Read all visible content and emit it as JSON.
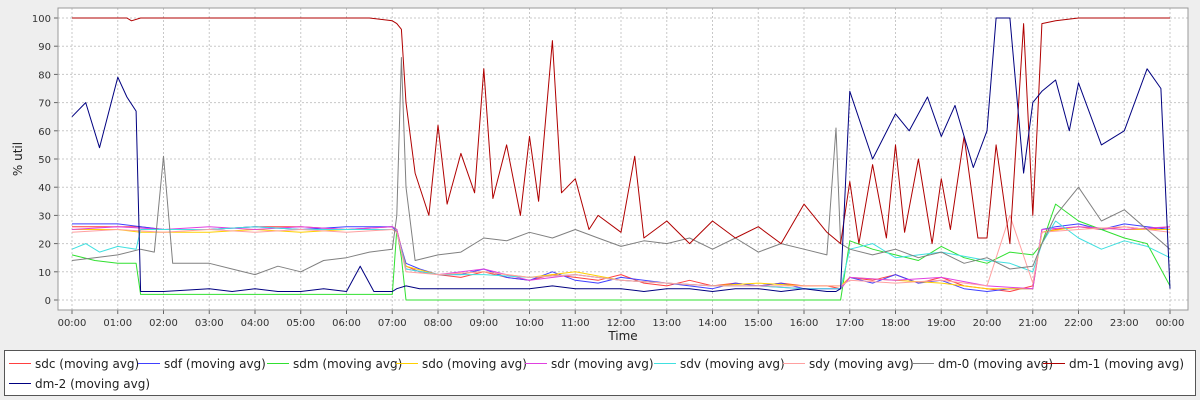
{
  "chart_data": {
    "type": "line",
    "title": "",
    "xlabel": "Time",
    "ylabel": "% util",
    "ylim": [
      0,
      100
    ],
    "y_ticks": [
      0,
      10,
      20,
      30,
      40,
      50,
      60,
      70,
      80,
      90,
      100
    ],
    "xlim": [
      0,
      24
    ],
    "x_unit": "hours since 00:00",
    "x_tick_labels": [
      "00:00",
      "01:00",
      "02:00",
      "03:00",
      "04:00",
      "05:00",
      "06:00",
      "07:00",
      "08:00",
      "09:00",
      "10:00",
      "11:00",
      "12:00",
      "13:00",
      "14:00",
      "15:00",
      "16:00",
      "17:00",
      "18:00",
      "19:00",
      "20:00",
      "21:00",
      "22:00",
      "23:00",
      "00:00"
    ],
    "grid": true,
    "legend_position": "bottom",
    "series": [
      {
        "name": "sdc (moving avg)",
        "color": "#ff4040",
        "x": [
          0,
          1,
          1.4,
          1.5,
          2,
          3,
          4,
          5,
          6,
          7,
          7.1,
          7.3,
          7.6,
          8,
          8.5,
          9,
          9.5,
          10,
          10.5,
          11,
          11.5,
          12,
          12.5,
          13,
          13.5,
          14,
          14.5,
          15,
          15.5,
          16,
          16.5,
          16.8,
          17,
          17.5,
          18,
          18.5,
          19,
          19.5,
          20,
          20.5,
          21,
          21.2,
          21.5,
          22,
          22.5,
          23,
          23.5,
          24
        ],
        "y": [
          26,
          26,
          26,
          26,
          25,
          25,
          26,
          26,
          25,
          26,
          25,
          12,
          10,
          9,
          8,
          10,
          8,
          7,
          9,
          8,
          7,
          9,
          6,
          5,
          7,
          5,
          6,
          5,
          6,
          5,
          5,
          4,
          8,
          7,
          9,
          6,
          8,
          5,
          4,
          3,
          5,
          24,
          25,
          26,
          25,
          26,
          25,
          26
        ]
      },
      {
        "name": "sdf (moving avg)",
        "color": "#4040ff",
        "x": [
          0,
          1,
          1.5,
          2,
          3,
          4,
          5,
          6,
          7,
          7.1,
          7.3,
          7.6,
          8,
          8.5,
          9,
          9.5,
          10,
          10.5,
          11,
          11.5,
          12,
          12.5,
          13,
          13.5,
          14,
          14.5,
          15,
          15.5,
          16,
          16.5,
          16.8,
          17,
          17.5,
          18,
          18.5,
          19,
          19.5,
          20,
          20.5,
          21,
          21.2,
          21.5,
          22,
          22.5,
          23,
          23.5,
          24
        ],
        "y": [
          27,
          27,
          26,
          25,
          25,
          26,
          25,
          26,
          26,
          24,
          13,
          11,
          9,
          9,
          11,
          8,
          7,
          10,
          7,
          6,
          8,
          7,
          6,
          5,
          4,
          6,
          5,
          6,
          4,
          4,
          4,
          8,
          6,
          9,
          6,
          7,
          4,
          3,
          4,
          4,
          25,
          26,
          27,
          25,
          27,
          26,
          25
        ]
      },
      {
        "name": "sdm (moving avg)",
        "color": "#30e030",
        "x": [
          0,
          0.5,
          1,
          1.4,
          1.5,
          2,
          3,
          4,
          5,
          6,
          6.5,
          7,
          7.1,
          7.2,
          7.3,
          8,
          9,
          10,
          11,
          12,
          13,
          14,
          15,
          16,
          16.5,
          16.8,
          17,
          17.5,
          18,
          18.5,
          19,
          19.5,
          20,
          20.5,
          21,
          21.2,
          21.5,
          22,
          22.5,
          23,
          23.5,
          24
        ],
        "y": [
          16,
          14,
          13,
          13,
          2,
          2,
          2,
          2,
          2,
          2,
          2,
          2,
          25,
          15,
          0,
          0,
          0,
          0,
          0,
          0,
          0,
          0,
          0,
          0,
          0,
          0,
          21,
          18,
          16,
          14,
          19,
          15,
          13,
          17,
          16,
          20,
          34,
          28,
          25,
          22,
          20,
          5
        ]
      },
      {
        "name": "sdo (moving avg)",
        "color": "#ffd000",
        "x": [
          0,
          1,
          1.5,
          2,
          3,
          4,
          5,
          6,
          7,
          7.1,
          7.3,
          8,
          9,
          10,
          11,
          12,
          13,
          14,
          15,
          16,
          16.8,
          17,
          18,
          19,
          20,
          21,
          21.2,
          22,
          23,
          24
        ],
        "y": [
          25,
          25,
          24,
          24,
          24,
          25,
          24,
          25,
          25,
          24,
          12,
          9,
          10,
          8,
          10,
          7,
          6,
          5,
          6,
          5,
          5,
          8,
          7,
          6,
          4,
          4,
          24,
          26,
          25,
          25
        ]
      },
      {
        "name": "sdr (moving avg)",
        "color": "#e040e0",
        "x": [
          0,
          1,
          2,
          3,
          4,
          5,
          6,
          7,
          7.1,
          7.3,
          8,
          9,
          10,
          11,
          12,
          13,
          14,
          15,
          16,
          16.8,
          17,
          18,
          19,
          20,
          21,
          21.2,
          22,
          23,
          24
        ],
        "y": [
          25,
          26,
          25,
          26,
          25,
          26,
          25,
          26,
          25,
          11,
          9,
          11,
          7,
          9,
          7,
          6,
          5,
          5,
          4,
          4,
          8,
          7,
          8,
          5,
          4,
          25,
          26,
          25,
          26
        ]
      },
      {
        "name": "sdv (moving avg)",
        "color": "#40e0e0",
        "x": [
          0,
          0.3,
          0.6,
          1,
          1.4,
          1.5,
          2,
          3,
          4,
          5,
          6,
          7,
          7.1,
          7.3,
          8,
          9,
          10,
          11,
          12,
          13,
          14,
          15,
          16,
          16.8,
          17,
          17.5,
          18,
          19,
          20,
          20.5,
          21,
          21.2,
          21.5,
          22,
          22.5,
          23,
          23.5,
          24
        ],
        "y": [
          18,
          20,
          17,
          19,
          18,
          25,
          25,
          25,
          26,
          25,
          25,
          25,
          24,
          11,
          9,
          9,
          8,
          9,
          7,
          6,
          5,
          5,
          4,
          4,
          18,
          20,
          15,
          17,
          14,
          13,
          10,
          20,
          28,
          22,
          18,
          21,
          19,
          15
        ]
      },
      {
        "name": "sdy (moving avg)",
        "color": "#ffa0a0",
        "x": [
          0,
          1,
          2,
          3,
          4,
          5,
          6,
          7,
          7.1,
          7.3,
          8,
          9,
          10,
          11,
          12,
          13,
          14,
          15,
          16,
          16.8,
          17,
          18,
          19,
          20,
          20.5,
          21,
          21.2,
          22,
          23,
          24
        ],
        "y": [
          24,
          25,
          24,
          25,
          24,
          25,
          24,
          25,
          24,
          10,
          9,
          10,
          8,
          9,
          7,
          6,
          5,
          5,
          5,
          5,
          7,
          6,
          7,
          5,
          30,
          6,
          24,
          25,
          26,
          24
        ]
      },
      {
        "name": "dm-0 (moving avg)",
        "color": "#808080",
        "x": [
          0,
          0.5,
          1,
          1.5,
          1.8,
          2,
          2.2,
          3,
          3.5,
          4,
          4.5,
          5,
          5.5,
          6,
          6.5,
          7,
          7.1,
          7.2,
          7.3,
          7.5,
          8,
          8.5,
          9,
          9.5,
          10,
          10.5,
          11,
          11.5,
          12,
          12.5,
          13,
          13.5,
          14,
          14.5,
          15,
          15.5,
          16,
          16.5,
          16.7,
          16.8,
          17,
          17.5,
          18,
          18.5,
          19,
          19.5,
          20,
          20.5,
          21,
          21.2,
          21.5,
          22,
          22.5,
          23,
          23.5,
          24
        ],
        "y": [
          14,
          15,
          16,
          18,
          17,
          51,
          13,
          13,
          11,
          9,
          12,
          10,
          14,
          15,
          17,
          18,
          30,
          86,
          40,
          14,
          16,
          17,
          22,
          21,
          24,
          22,
          25,
          22,
          19,
          21,
          20,
          22,
          18,
          22,
          17,
          20,
          18,
          16,
          61,
          20,
          18,
          16,
          18,
          15,
          17,
          13,
          15,
          11,
          12,
          20,
          30,
          40,
          28,
          32,
          25,
          18
        ]
      },
      {
        "name": "dm-1 (moving avg)",
        "color": "#b00000",
        "x": [
          0,
          0.5,
          1,
          1.2,
          1.3,
          1.5,
          2,
          3,
          4,
          5,
          6,
          6.5,
          7,
          7.1,
          7.2,
          7.3,
          7.5,
          7.8,
          8,
          8.2,
          8.5,
          8.8,
          9,
          9.2,
          9.5,
          9.8,
          10,
          10.2,
          10.5,
          10.7,
          11,
          11.3,
          11.5,
          12,
          12.3,
          12.5,
          13,
          13.5,
          14,
          14.5,
          15,
          15.5,
          16,
          16.5,
          16.8,
          17,
          17.2,
          17.5,
          17.8,
          18,
          18.2,
          18.5,
          18.8,
          19,
          19.2,
          19.5,
          19.8,
          20,
          20.2,
          20.5,
          20.8,
          21,
          21.1,
          21.2,
          21.5,
          22,
          22.5,
          23,
          23.5,
          24
        ],
        "y": [
          100,
          100,
          100,
          100,
          99,
          100,
          100,
          100,
          100,
          100,
          100,
          100,
          99,
          98,
          96,
          70,
          45,
          30,
          62,
          34,
          52,
          38,
          82,
          36,
          55,
          30,
          58,
          35,
          92,
          38,
          43,
          25,
          30,
          24,
          51,
          22,
          28,
          20,
          28,
          22,
          26,
          20,
          34,
          24,
          20,
          42,
          20,
          48,
          22,
          55,
          24,
          50,
          20,
          43,
          25,
          58,
          22,
          22,
          55,
          20,
          98,
          30,
          62,
          98,
          99,
          100,
          100,
          100,
          100,
          100
        ]
      },
      {
        "name": "dm-2 (moving avg)",
        "color": "#000080",
        "x": [
          0,
          0.3,
          0.6,
          1,
          1.2,
          1.4,
          1.5,
          2,
          3,
          3.5,
          4,
          4.5,
          5,
          5.5,
          6,
          6.3,
          6.6,
          7,
          7.1,
          7.3,
          7.6,
          8,
          8.5,
          9,
          9.5,
          10,
          10.5,
          11,
          11.5,
          12,
          12.5,
          13,
          13.5,
          14,
          14.5,
          15,
          15.5,
          16,
          16.5,
          16.7,
          16.8,
          17,
          17.5,
          18,
          18.3,
          18.7,
          19,
          19.3,
          19.7,
          20,
          20.2,
          20.5,
          20.8,
          21,
          21.2,
          21.5,
          21.8,
          22,
          22.5,
          23,
          23.5,
          23.8,
          24
        ],
        "y": [
          65,
          70,
          54,
          79,
          72,
          67,
          3,
          3,
          4,
          3,
          4,
          3,
          3,
          4,
          3,
          12,
          3,
          3,
          4,
          5,
          4,
          4,
          4,
          4,
          4,
          4,
          5,
          4,
          4,
          4,
          3,
          4,
          4,
          3,
          4,
          4,
          3,
          4,
          3,
          3,
          4,
          74,
          50,
          66,
          60,
          72,
          58,
          69,
          47,
          60,
          100,
          100,
          45,
          70,
          74,
          78,
          60,
          77,
          55,
          60,
          82,
          75,
          4
        ]
      }
    ]
  }
}
